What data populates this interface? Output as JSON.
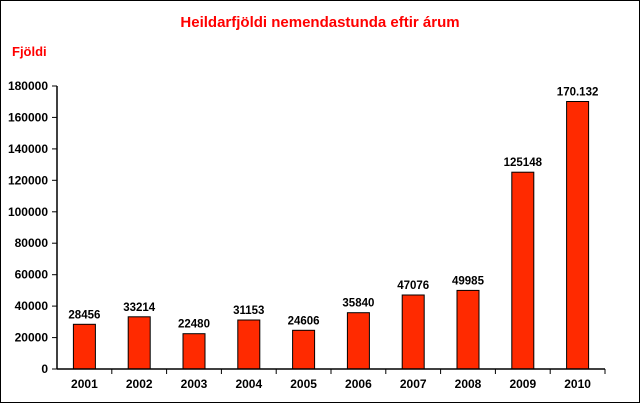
{
  "chart_data": {
    "type": "bar",
    "title": "Heildarfjöldi nemendastunda eftir árum",
    "ylabel": "Fjöldi",
    "xlabel": "",
    "categories": [
      "2001",
      "2002",
      "2003",
      "2004",
      "2005",
      "2006",
      "2007",
      "2008",
      "2009",
      "2010"
    ],
    "values": [
      28456,
      33214,
      22480,
      31153,
      24606,
      35840,
      47076,
      49985,
      125148,
      170132
    ],
    "data_labels": [
      "28456",
      "33214",
      "22480",
      "31153",
      "24606",
      "35840",
      "47076",
      "49985",
      "125148",
      "170.132"
    ],
    "ylim": [
      0,
      180000
    ],
    "yticks": [
      0,
      20000,
      40000,
      60000,
      80000,
      100000,
      120000,
      140000,
      160000,
      180000
    ],
    "grid": false,
    "legend": "none",
    "colors": {
      "bar_fill": "#ff2a00",
      "bar_stroke": "#000000",
      "title": "#ff0000",
      "ylabel": "#ff0000"
    }
  }
}
